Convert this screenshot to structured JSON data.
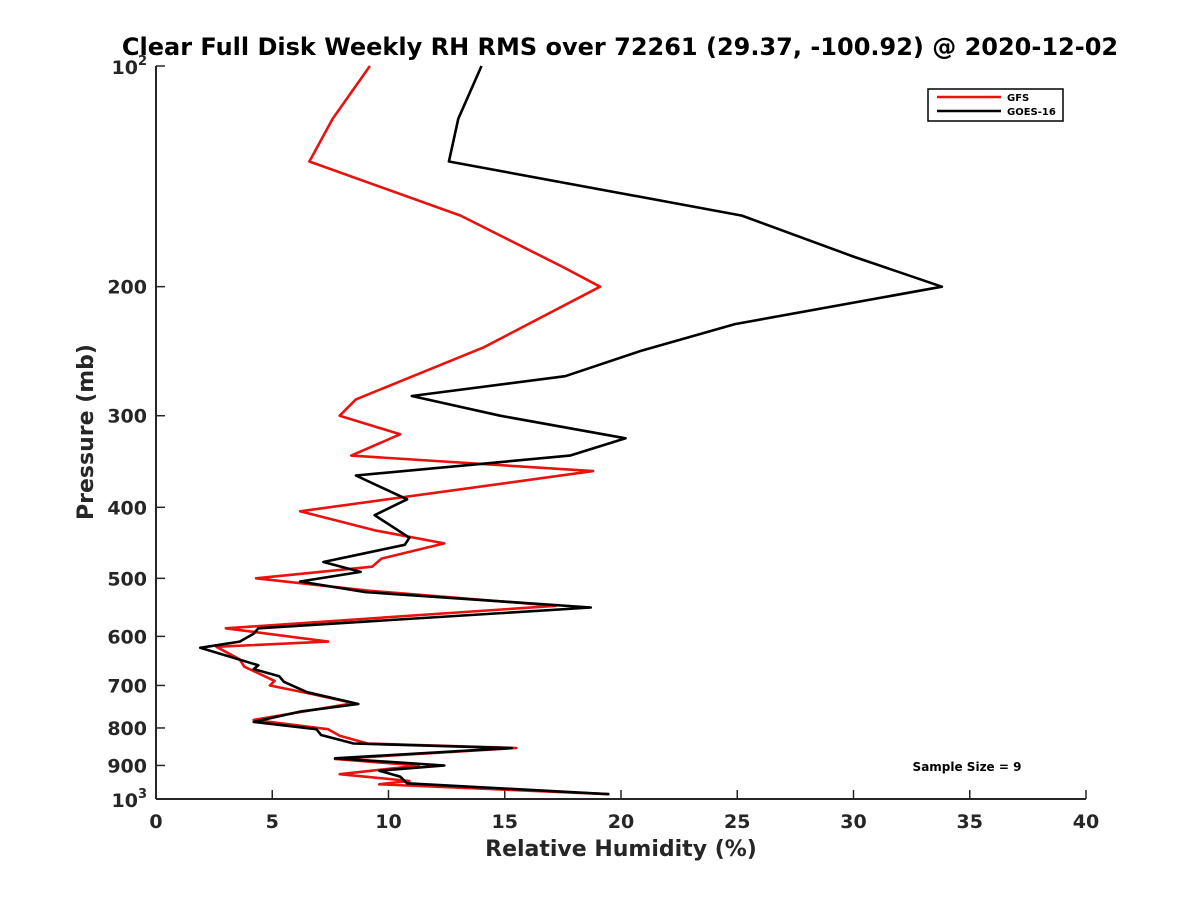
{
  "chart_data": {
    "type": "line",
    "title": "Clear Full Disk Weekly RH RMS over 72261 (29.37, -100.92) @ 2020-12-02",
    "xlabel": "Relative Humidity (%)",
    "ylabel": "Pressure (mb)",
    "xlim": [
      0,
      40
    ],
    "ylim": [
      100,
      1000
    ],
    "y_scale": "log",
    "y_reversed": true,
    "x_ticks": [
      0,
      5,
      10,
      15,
      20,
      25,
      30,
      35,
      40
    ],
    "y_ticks": [
      {
        "value": 100,
        "base": "10",
        "exp": "2"
      },
      {
        "value": 200,
        "label": "200"
      },
      {
        "value": 300,
        "label": "300"
      },
      {
        "value": 400,
        "label": "400"
      },
      {
        "value": 500,
        "label": "500"
      },
      {
        "value": 600,
        "label": "600"
      },
      {
        "value": 700,
        "label": "700"
      },
      {
        "value": 800,
        "label": "800"
      },
      {
        "value": 900,
        "label": "900"
      },
      {
        "value": 1000,
        "base": "10",
        "exp": "3"
      }
    ],
    "legend_position": "top-right",
    "annotation": "Sample Size = 9",
    "series": [
      {
        "name": "GFS",
        "color": "#e8120f",
        "points": [
          [
            9.2,
            100
          ],
          [
            7.6,
            118
          ],
          [
            6.6,
            135
          ],
          [
            13.1,
            160
          ],
          [
            17.5,
            188
          ],
          [
            19.1,
            200
          ],
          [
            14.1,
            242
          ],
          [
            8.6,
            285
          ],
          [
            7.9,
            300
          ],
          [
            10.5,
            318
          ],
          [
            8.4,
            340
          ],
          [
            18.8,
            357
          ],
          [
            6.2,
            405
          ],
          [
            9.4,
            430
          ],
          [
            12.4,
            448
          ],
          [
            9.7,
            470
          ],
          [
            9.3,
            482
          ],
          [
            4.3,
            500
          ],
          [
            9.2,
            520
          ],
          [
            17.2,
            545
          ],
          [
            3.0,
            585
          ],
          [
            7.4,
            610
          ],
          [
            2.6,
            620
          ],
          [
            3.6,
            645
          ],
          [
            3.8,
            660
          ],
          [
            5.1,
            690
          ],
          [
            4.9,
            700
          ],
          [
            6.6,
            718
          ],
          [
            8.5,
            740
          ],
          [
            4.2,
            780
          ],
          [
            7.4,
            803
          ],
          [
            7.9,
            820
          ],
          [
            9.1,
            840
          ],
          [
            15.5,
            852
          ],
          [
            7.7,
            882
          ],
          [
            11.3,
            900
          ],
          [
            7.9,
            925
          ],
          [
            10.9,
            945
          ],
          [
            9.6,
            955
          ],
          [
            19.5,
            985
          ]
        ]
      },
      {
        "name": "GOES-16",
        "color": "#000000",
        "points": [
          [
            14.0,
            100
          ],
          [
            13.0,
            118
          ],
          [
            12.6,
            135
          ],
          [
            25.2,
            160
          ],
          [
            30.0,
            182
          ],
          [
            33.8,
            200
          ],
          [
            24.9,
            225
          ],
          [
            20.8,
            245
          ],
          [
            17.6,
            265
          ],
          [
            11.0,
            282
          ],
          [
            14.8,
            300
          ],
          [
            20.2,
            322
          ],
          [
            17.8,
            340
          ],
          [
            8.6,
            362
          ],
          [
            10.8,
            390
          ],
          [
            9.4,
            410
          ],
          [
            10.9,
            440
          ],
          [
            10.7,
            450
          ],
          [
            7.2,
            475
          ],
          [
            8.8,
            490
          ],
          [
            6.2,
            505
          ],
          [
            9.0,
            522
          ],
          [
            18.7,
            548
          ],
          [
            4.4,
            585
          ],
          [
            4.2,
            595
          ],
          [
            3.6,
            610
          ],
          [
            1.9,
            622
          ],
          [
            4.4,
            657
          ],
          [
            4.2,
            665
          ],
          [
            5.3,
            680
          ],
          [
            5.5,
            692
          ],
          [
            6.5,
            715
          ],
          [
            8.7,
            742
          ],
          [
            6.2,
            760
          ],
          [
            4.2,
            785
          ],
          [
            6.9,
            803
          ],
          [
            7.1,
            818
          ],
          [
            8.5,
            840
          ],
          [
            15.3,
            852
          ],
          [
            7.7,
            880
          ],
          [
            12.4,
            900
          ],
          [
            9.6,
            915
          ],
          [
            10.5,
            932
          ],
          [
            10.8,
            952
          ],
          [
            19.5,
            985
          ]
        ]
      }
    ]
  }
}
